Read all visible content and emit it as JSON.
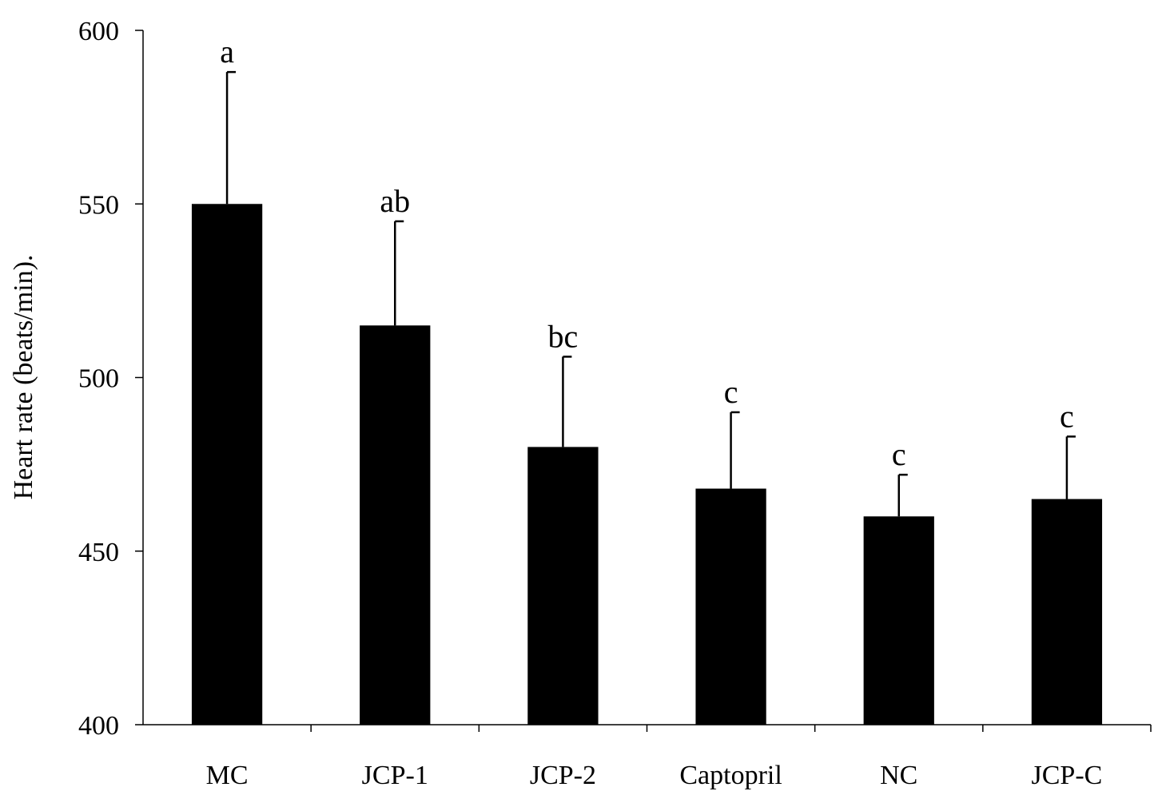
{
  "chart_data": {
    "type": "bar",
    "title": "",
    "xlabel": "",
    "ylabel": "Heart rate (beats/min).",
    "ylim": [
      400,
      600
    ],
    "yticks": [
      400,
      450,
      500,
      550,
      600
    ],
    "ytick_labels": [
      "400",
      "450",
      "500",
      "550",
      "600"
    ],
    "grid": false,
    "legend": "none",
    "categories": [
      "MC",
      "JCP-1",
      "JCP-2",
      "Captopril",
      "NC",
      "JCP-C"
    ],
    "values": [
      550,
      515,
      480,
      468,
      460,
      465
    ],
    "error_upper": [
      38,
      30,
      26,
      22,
      12,
      18
    ],
    "significance_labels": [
      "a",
      "ab",
      "bc",
      "c",
      "c",
      "c"
    ],
    "colors": {
      "bar": "#000000",
      "axis": "#000000"
    }
  }
}
